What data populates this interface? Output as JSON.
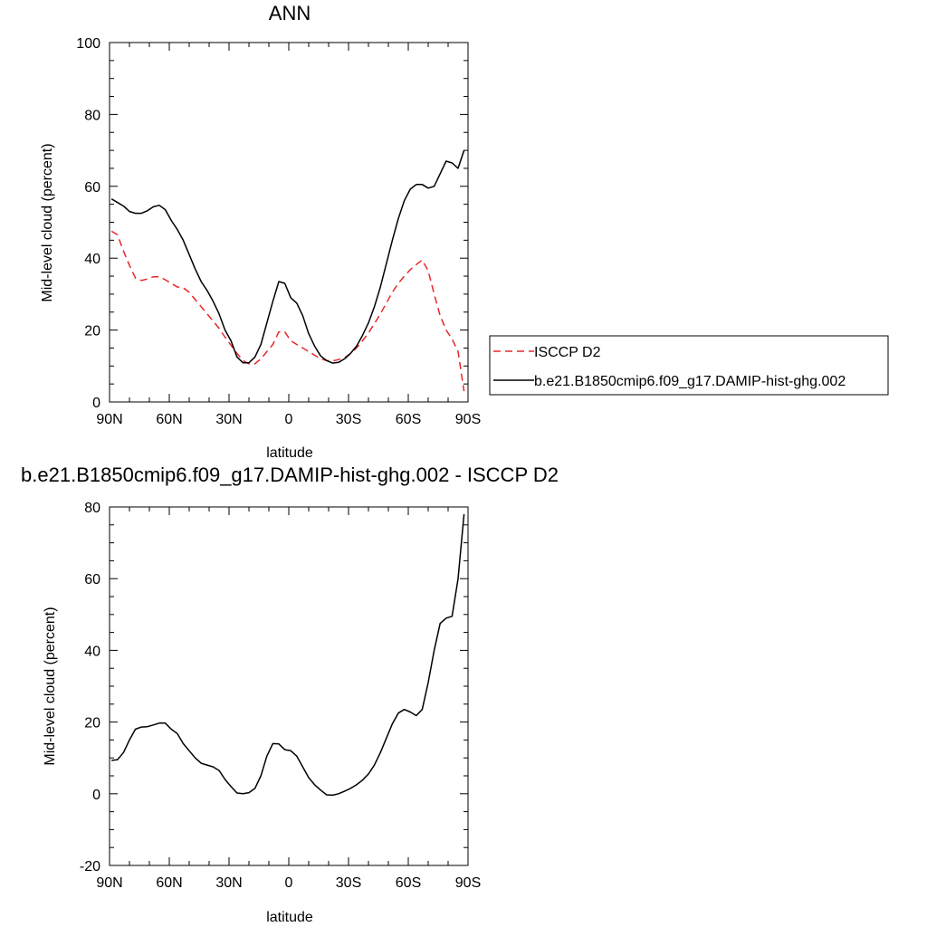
{
  "chart_data": [
    {
      "type": "line",
      "title": "ANN",
      "xlabel": "latitude",
      "ylabel": "Mid-level cloud (percent)",
      "xlim": [
        -90,
        90
      ],
      "ylim": [
        0,
        100
      ],
      "xticks": [
        {
          "value": -90,
          "label": "90N"
        },
        {
          "value": -60,
          "label": "60N"
        },
        {
          "value": -30,
          "label": "30N"
        },
        {
          "value": 0,
          "label": "0"
        },
        {
          "value": 30,
          "label": "30S"
        },
        {
          "value": 60,
          "label": "60S"
        },
        {
          "value": 90,
          "label": "90S"
        }
      ],
      "yticks": [
        {
          "value": 0,
          "label": "0"
        },
        {
          "value": 20,
          "label": "20"
        },
        {
          "value": 40,
          "label": "40"
        },
        {
          "value": 60,
          "label": "60"
        },
        {
          "value": 80,
          "label": "80"
        },
        {
          "value": 100,
          "label": "100"
        }
      ],
      "legend_position": "right",
      "series": [
        {
          "name": "ISCCP D2",
          "color": "#e8262b",
          "dash": "dashed",
          "x": [
            -89,
            -86,
            -83,
            -80,
            -77,
            -74,
            -71,
            -68,
            -65,
            -62,
            -59,
            -56,
            -53,
            -50,
            -47,
            -44,
            -41,
            -38,
            -35,
            -32,
            -29,
            -26,
            -23,
            -20,
            -17,
            -14,
            -11,
            -8,
            -5,
            -2,
            1,
            4,
            7,
            10,
            13,
            16,
            19,
            22,
            25,
            28,
            31,
            34,
            37,
            40,
            43,
            46,
            49,
            52,
            55,
            58,
            61,
            64,
            67,
            70,
            73,
            76,
            79,
            82,
            85,
            88
          ],
          "y": [
            47.5,
            46.5,
            42,
            38,
            34.5,
            33.8,
            34.2,
            34.8,
            34.8,
            34,
            33,
            32,
            31.8,
            30.5,
            28.5,
            26.5,
            24.5,
            22.5,
            20.5,
            18,
            15.8,
            13.5,
            11.5,
            10.6,
            10.6,
            12,
            14,
            16,
            19.5,
            19.5,
            17,
            16,
            15,
            14,
            13,
            12,
            11.5,
            11.4,
            11.8,
            12.3,
            13.5,
            15,
            17,
            19.2,
            21.8,
            24.5,
            27.5,
            30.5,
            33,
            35,
            36.8,
            38.2,
            39.5,
            36.5,
            30,
            24,
            20,
            17.5,
            14,
            3
          ]
        },
        {
          "name": "b.e21.B1850cmip6.f09_g17.DAMIP-hist-ghg.002",
          "color": "#000000",
          "dash": "solid",
          "x": [
            -89,
            -86,
            -83,
            -80,
            -77,
            -74,
            -71,
            -68,
            -65,
            -62,
            -59,
            -56,
            -53,
            -50,
            -47,
            -44,
            -41,
            -38,
            -35,
            -32,
            -29,
            -26,
            -23,
            -20,
            -17,
            -14,
            -11,
            -8,
            -5,
            -2,
            1,
            4,
            7,
            10,
            13,
            16,
            19,
            22,
            25,
            28,
            31,
            34,
            37,
            40,
            43,
            46,
            49,
            52,
            55,
            58,
            61,
            64,
            67,
            70,
            73,
            76,
            79,
            82,
            85,
            88
          ],
          "y": [
            56.5,
            55.5,
            54.5,
            53,
            52.5,
            52.5,
            53.2,
            54.3,
            54.7,
            53.5,
            50.5,
            48,
            45,
            41,
            37,
            33.5,
            31,
            28,
            24.5,
            20,
            17,
            12.5,
            10.9,
            10.9,
            12.5,
            16,
            22,
            28,
            33.5,
            33,
            29,
            27.5,
            24,
            19,
            15.5,
            12.8,
            11.5,
            10.8,
            11,
            12,
            13.5,
            15.5,
            18.5,
            22,
            26.5,
            32,
            38.5,
            45,
            51,
            56,
            59.2,
            60.5,
            60.5,
            59.5,
            60,
            63.5,
            67,
            66.5,
            65,
            70
          ]
        }
      ]
    },
    {
      "type": "line",
      "title": "b.e21.B1850cmip6.f09_g17.DAMIP-hist-ghg.002 - ISCCP D2",
      "xlabel": "latitude",
      "ylabel": "Mid-level cloud (percent)",
      "xlim": [
        -90,
        90
      ],
      "ylim": [
        -20,
        80
      ],
      "xticks": [
        {
          "value": -90,
          "label": "90N"
        },
        {
          "value": -60,
          "label": "60N"
        },
        {
          "value": -30,
          "label": "30N"
        },
        {
          "value": 0,
          "label": "0"
        },
        {
          "value": 30,
          "label": "30S"
        },
        {
          "value": 60,
          "label": "60S"
        },
        {
          "value": 90,
          "label": "90S"
        }
      ],
      "yticks": [
        {
          "value": -20,
          "label": "-20"
        },
        {
          "value": 0,
          "label": "0"
        },
        {
          "value": 20,
          "label": "20"
        },
        {
          "value": 40,
          "label": "40"
        },
        {
          "value": 60,
          "label": "60"
        },
        {
          "value": 80,
          "label": "80"
        }
      ],
      "series": [
        {
          "color": "#000000",
          "dash": "solid",
          "x": [
            -89,
            -86,
            -83,
            -80,
            -77,
            -74,
            -71,
            -68,
            -65,
            -62,
            -59,
            -56,
            -53,
            -50,
            -47,
            -44,
            -41,
            -38,
            -35,
            -32,
            -29,
            -26,
            -23,
            -20,
            -17,
            -14,
            -11,
            -8,
            -5,
            -2,
            1,
            4,
            7,
            10,
            13,
            16,
            19,
            22,
            25,
            28,
            31,
            34,
            37,
            40,
            43,
            46,
            49,
            52,
            55,
            58,
            61,
            64,
            67,
            70,
            73,
            76,
            79,
            82,
            85,
            88
          ],
          "y": [
            9.3,
            9.5,
            11.5,
            15,
            18,
            18.6,
            18.7,
            19.2,
            19.7,
            19.7,
            18,
            16.8,
            14,
            12,
            10,
            8.5,
            8,
            7.5,
            6.5,
            4,
            2,
            0.2,
            0,
            0.3,
            1.5,
            5,
            10.5,
            14,
            13.9,
            12.3,
            12,
            10.5,
            7.5,
            4.5,
            2.5,
            1,
            -0.3,
            -0.4,
            0,
            0.7,
            1.5,
            2.5,
            3.8,
            5.5,
            8,
            11.5,
            15.5,
            19.5,
            22.5,
            23.5,
            22.8,
            21.8,
            23.5,
            31,
            40,
            47.5,
            49,
            49.5,
            60,
            78
          ]
        }
      ]
    }
  ]
}
